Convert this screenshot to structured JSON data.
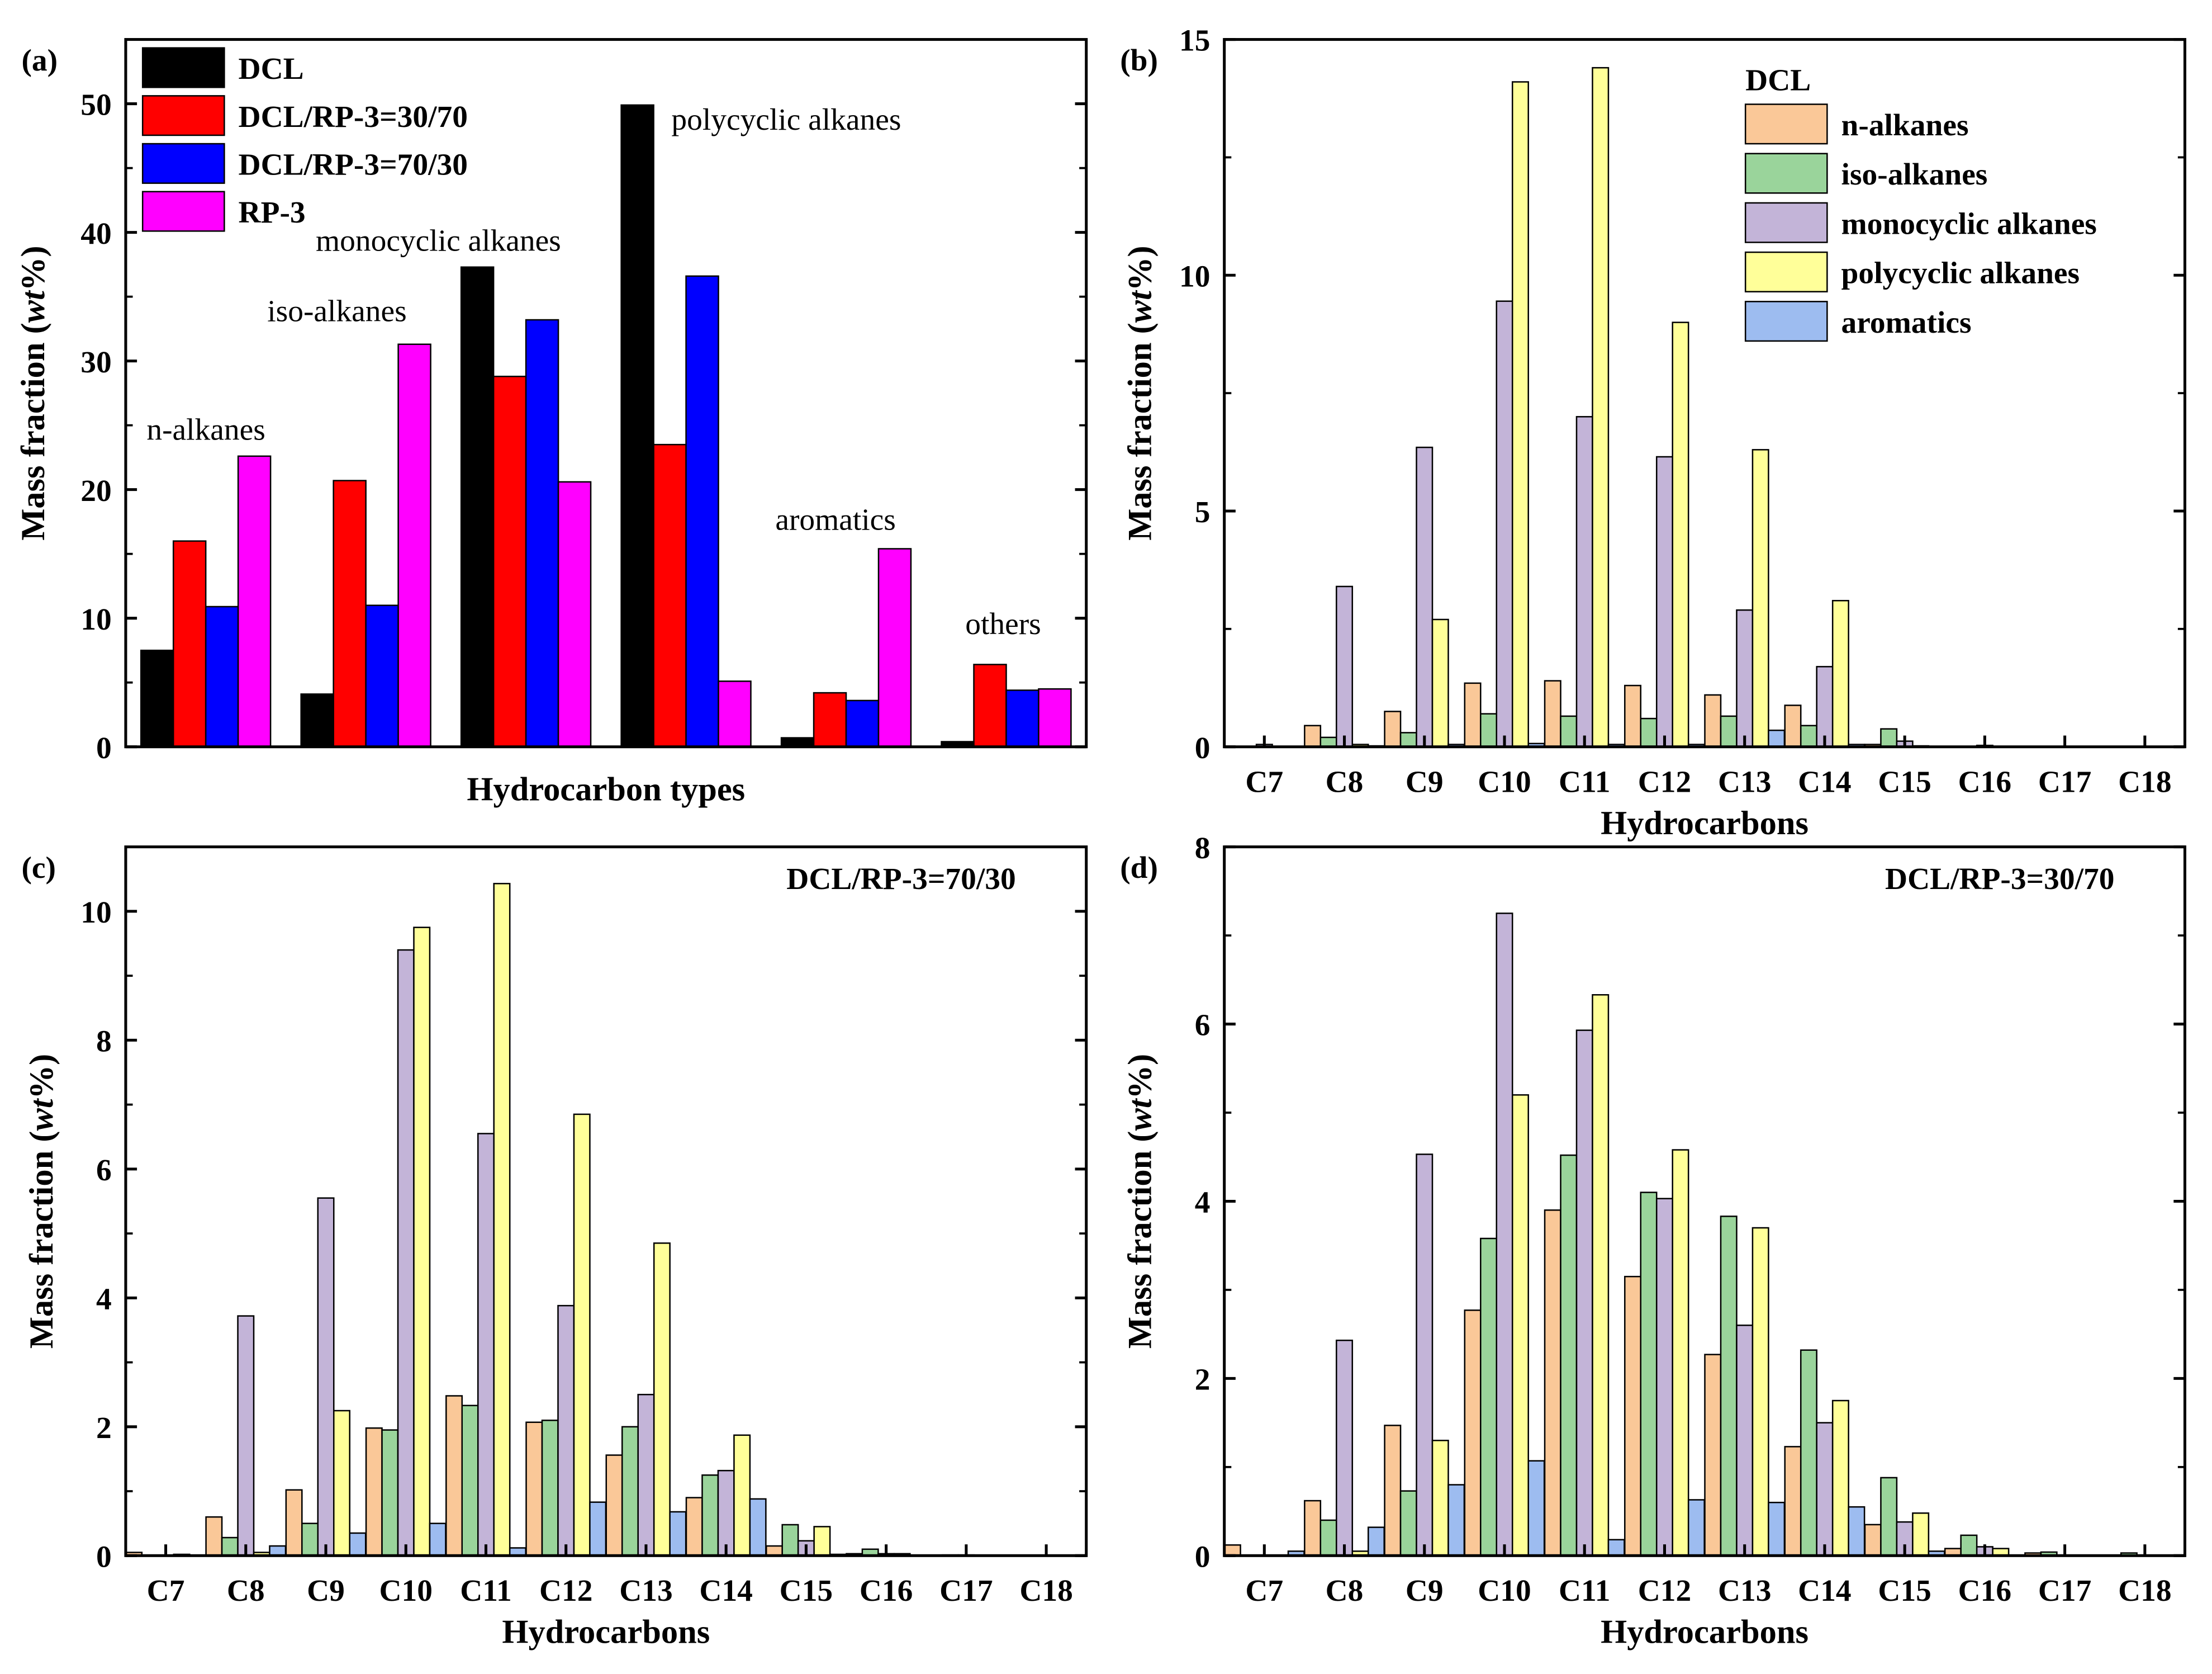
{
  "chart_data": [
    {
      "panel": "(a)",
      "type": "bar",
      "title": "",
      "xlabel": "Hydrocarbon types",
      "ylabel": "Mass fraction (wt%)",
      "ylim": [
        0,
        55
      ],
      "yticks": [
        0,
        10,
        20,
        30,
        40,
        50
      ],
      "categories": [
        "n-alkanes",
        "iso-alkanes",
        "monocyclic alkanes",
        "polycyclic alkanes",
        "aromatics",
        "others"
      ],
      "show_category_ticks": false,
      "legend_placement": "top-left",
      "series": [
        {
          "name": "DCL",
          "color": "#000000",
          "values": [
            7.5,
            4.1,
            37.3,
            49.9,
            0.7,
            0.4
          ]
        },
        {
          "name": "DCL/RP-3=30/70",
          "color": "#FF0000",
          "values": [
            16.0,
            20.7,
            28.8,
            23.5,
            4.2,
            6.4
          ]
        },
        {
          "name": "DCL/RP-3=70/30",
          "color": "#0000FF",
          "values": [
            10.9,
            11.0,
            33.2,
            36.6,
            3.6,
            4.4
          ]
        },
        {
          "name": "RP-3",
          "color": "#FF00FF",
          "values": [
            22.6,
            31.3,
            20.6,
            5.1,
            15.4,
            4.5
          ]
        }
      ],
      "annotations": [
        "n-alkanes",
        "iso-alkanes",
        "monocyclic alkanes",
        "polycyclic alkanes",
        "aromatics",
        "others"
      ]
    },
    {
      "panel": "(b)",
      "type": "bar",
      "title": "DCL",
      "xlabel": "Hydrocarbons",
      "ylabel": "Mass fraction (wt%)",
      "ylim": [
        0,
        15
      ],
      "yticks": [
        0,
        5,
        10,
        15
      ],
      "categories": [
        "C7",
        "C8",
        "C9",
        "C10",
        "C11",
        "C12",
        "C13",
        "C14",
        "C15",
        "C16",
        "C17",
        "C18"
      ],
      "legend_placement": "top-right",
      "series": [
        {
          "name": "n-alkanes",
          "color": "#FAC898",
          "values": [
            0,
            0.45,
            0.75,
            1.35,
            1.4,
            1.3,
            1.1,
            0.88,
            0.05,
            0,
            0,
            0
          ]
        },
        {
          "name": "iso-alkanes",
          "color": "#9AD49B",
          "values": [
            0,
            0.2,
            0.3,
            0.7,
            0.65,
            0.6,
            0.65,
            0.45,
            0.38,
            0,
            0,
            0
          ]
        },
        {
          "name": "monocyclic alkanes",
          "color": "#C3B4D8",
          "values": [
            0.05,
            3.4,
            6.35,
            9.45,
            7.0,
            6.15,
            2.9,
            1.7,
            0.12,
            0.03,
            0,
            0
          ]
        },
        {
          "name": "polycyclic alkanes",
          "color": "#FFFF99",
          "values": [
            0,
            0.05,
            2.7,
            14.1,
            14.4,
            9.0,
            6.3,
            3.1,
            0.02,
            0,
            0,
            0
          ]
        },
        {
          "name": "aromatics",
          "color": "#9DBCF0",
          "values": [
            0,
            0.02,
            0.05,
            0.07,
            0.05,
            0.05,
            0.35,
            0.05,
            0,
            0,
            0,
            0
          ]
        }
      ]
    },
    {
      "panel": "(c)",
      "type": "bar",
      "title": "DCL/RP-3=70/30",
      "xlabel": "Hydrocarbons",
      "ylabel": "Mass fraction (wt%)",
      "ylim": [
        0,
        11
      ],
      "yticks": [
        0,
        2,
        4,
        6,
        8,
        10
      ],
      "categories": [
        "C7",
        "C8",
        "C9",
        "C10",
        "C11",
        "C12",
        "C13",
        "C14",
        "C15",
        "C16",
        "C17",
        "C18"
      ],
      "series": [
        {
          "name": "n-alkanes",
          "color": "#FAC898",
          "values": [
            0.05,
            0.6,
            1.02,
            1.98,
            2.48,
            2.07,
            1.56,
            0.9,
            0.15,
            0.03,
            0,
            0
          ]
        },
        {
          "name": "iso-alkanes",
          "color": "#9AD49B",
          "values": [
            0,
            0.28,
            0.5,
            1.95,
            2.33,
            2.1,
            2.0,
            1.25,
            0.48,
            0.1,
            0.01,
            0
          ]
        },
        {
          "name": "monocyclic alkanes",
          "color": "#C3B4D8",
          "values": [
            0,
            3.72,
            5.55,
            9.4,
            6.55,
            3.88,
            2.5,
            1.32,
            0.23,
            0.03,
            0.01,
            0
          ]
        },
        {
          "name": "polycyclic alkanes",
          "color": "#FFFF99",
          "values": [
            0.02,
            0.05,
            2.25,
            9.75,
            10.43,
            6.85,
            4.85,
            1.87,
            0.45,
            0.03,
            0,
            0
          ]
        },
        {
          "name": "aromatics",
          "color": "#9DBCF0",
          "values": [
            0,
            0.15,
            0.35,
            0.5,
            0.12,
            0.83,
            0.68,
            0.88,
            0.02,
            0,
            0,
            0
          ]
        }
      ]
    },
    {
      "panel": "(d)",
      "type": "bar",
      "title": "DCL/RP-3=30/70",
      "xlabel": "Hydrocarbons",
      "ylabel": "Mass fraction (wt%)",
      "ylim": [
        0,
        8
      ],
      "yticks": [
        0,
        2,
        4,
        6,
        8
      ],
      "categories": [
        "C7",
        "C8",
        "C9",
        "C10",
        "C11",
        "C12",
        "C13",
        "C14",
        "C15",
        "C16",
        "C17",
        "C18"
      ],
      "series": [
        {
          "name": "n-alkanes",
          "color": "#FAC898",
          "values": [
            0.12,
            0.62,
            1.47,
            2.77,
            3.9,
            3.15,
            2.27,
            1.23,
            0.35,
            0.08,
            0.03,
            0
          ]
        },
        {
          "name": "iso-alkanes",
          "color": "#9AD49B",
          "values": [
            0,
            0.4,
            0.73,
            3.58,
            4.52,
            4.1,
            3.83,
            2.32,
            0.88,
            0.23,
            0.04,
            0.03
          ]
        },
        {
          "name": "monocyclic alkanes",
          "color": "#C3B4D8",
          "values": [
            0,
            2.43,
            4.53,
            7.25,
            5.93,
            4.03,
            2.6,
            1.5,
            0.38,
            0.1,
            0,
            0
          ]
        },
        {
          "name": "polycyclic alkanes",
          "color": "#FFFF99",
          "values": [
            0,
            0.05,
            1.3,
            5.2,
            6.33,
            4.58,
            3.7,
            1.75,
            0.48,
            0.08,
            0,
            0
          ]
        },
        {
          "name": "aromatics",
          "color": "#9DBCF0",
          "values": [
            0.05,
            0.32,
            0.8,
            1.07,
            0.18,
            0.63,
            0.6,
            0.55,
            0.05,
            0,
            0,
            0
          ]
        }
      ]
    }
  ]
}
